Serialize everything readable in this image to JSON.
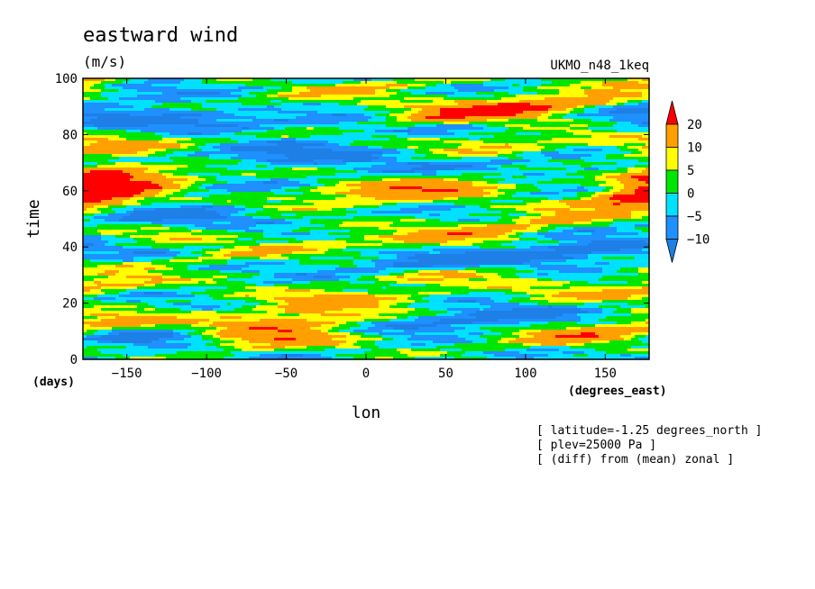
{
  "chart_data": {
    "type": "heatmap",
    "title": "eastward wind",
    "units": "(m/s)",
    "model": "UKMO_n48_1keq",
    "xlabel": "lon",
    "ylabel": "time",
    "x_units": "(degrees_east)",
    "y_units": "(days)",
    "xlim": [
      -177.5,
      177.5
    ],
    "ylim": [
      0,
      100
    ],
    "x_ticks": [
      -150,
      -100,
      -50,
      0,
      50,
      100,
      150
    ],
    "y_ticks": [
      0,
      20,
      40,
      60,
      80,
      100
    ],
    "notes": [
      "[ latitude=-1.25 degrees_north ]",
      "[ plev=25000 Pa ]",
      "[ (diff) from (mean) zonal ]"
    ],
    "colorbar": {
      "labels": [
        "20",
        "10",
        "5",
        "0",
        "-5",
        "-10"
      ],
      "levels": [
        {
          "lo": -99,
          "hi": -10,
          "color": "#1e7fe6"
        },
        {
          "lo": -10,
          "hi": -5,
          "color": "#1e90ff"
        },
        {
          "lo": -5,
          "hi": 0,
          "color": "#00e1ff"
        },
        {
          "lo": 0,
          "hi": 5,
          "color": "#00e600"
        },
        {
          "lo": 5,
          "hi": 10,
          "color": "#ffff00"
        },
        {
          "lo": 10,
          "hi": 20,
          "color": "#ffa000"
        },
        {
          "lo": 20,
          "hi": 99,
          "color": "#ff0000"
        }
      ]
    },
    "features": [
      {
        "x0": -180,
        "t0": 98,
        "speed": 0.14,
        "half_time": 3.0,
        "width_deg": 55,
        "amp": 16
      },
      {
        "x0": 0,
        "t0": 96,
        "speed": 0.07,
        "half_time": 2.5,
        "width_deg": 80,
        "amp": 12
      },
      {
        "x0": 80,
        "t0": 89,
        "speed": 0.09,
        "half_time": 3.0,
        "width_deg": 50,
        "amp": 20
      },
      {
        "x0": 20,
        "t0": 86,
        "speed": 0.06,
        "half_time": 2.5,
        "width_deg": 90,
        "amp": 10
      },
      {
        "x0": 90,
        "t0": 77,
        "speed": 0.04,
        "half_time": 2.5,
        "width_deg": 40,
        "amp": 14
      },
      {
        "x0": -160,
        "t0": 76,
        "speed": 0.04,
        "half_time": 2.5,
        "width_deg": 40,
        "amp": 13
      },
      {
        "x0": -165,
        "t0": 63,
        "speed": 0.0,
        "half_time": 6.0,
        "width_deg": 25,
        "amp": 22
      },
      {
        "x0": -120,
        "t0": 67,
        "speed": 0.05,
        "half_time": 3.5,
        "width_deg": 40,
        "amp": 13
      },
      {
        "x0": 50,
        "t0": 62,
        "speed": 0.07,
        "half_time": 3.5,
        "width_deg": 60,
        "amp": 18
      },
      {
        "x0": -40,
        "t0": 57,
        "speed": 0.05,
        "half_time": 2.5,
        "width_deg": 60,
        "amp": 8
      },
      {
        "x0": 170,
        "t0": 57,
        "speed": 0.0,
        "half_time": 2.5,
        "width_deg": 25,
        "amp": 18
      },
      {
        "x0": 80,
        "t0": 46,
        "speed": 0.1,
        "half_time": 3.0,
        "width_deg": 90,
        "amp": 16
      },
      {
        "x0": -60,
        "t0": 39,
        "speed": 0.08,
        "half_time": 2.5,
        "width_deg": 70,
        "amp": 11
      },
      {
        "x0": -120,
        "t0": 45,
        "speed": 0.04,
        "half_time": 2.5,
        "width_deg": 40,
        "amp": 9
      },
      {
        "x0": 60,
        "t0": 30,
        "speed": 0.03,
        "half_time": 2.5,
        "width_deg": 50,
        "amp": 11
      },
      {
        "x0": -160,
        "t0": 27,
        "speed": 0.04,
        "half_time": 2.5,
        "width_deg": 30,
        "amp": 9
      },
      {
        "x0": -20,
        "t0": 22,
        "speed": 0.03,
        "half_time": 2.5,
        "width_deg": 50,
        "amp": 12
      },
      {
        "x0": 150,
        "t0": 24,
        "speed": 0.03,
        "half_time": 2.5,
        "width_deg": 40,
        "amp": 12
      },
      {
        "x0": -45,
        "t0": 14,
        "speed": 0.05,
        "half_time": 3.0,
        "width_deg": 45,
        "amp": 19
      },
      {
        "x0": -55,
        "t0": 7,
        "speed": 0.04,
        "half_time": 2.5,
        "width_deg": 40,
        "amp": 18
      },
      {
        "x0": 140,
        "t0": 9,
        "speed": 0.04,
        "half_time": 3.0,
        "width_deg": 50,
        "amp": 18
      },
      {
        "x0": -160,
        "t0": 14,
        "speed": 0.02,
        "half_time": 2.5,
        "width_deg": 40,
        "amp": 9
      },
      {
        "x0": -120,
        "t0": 86,
        "speed": -0.02,
        "half_time": 3.0,
        "width_deg": 45,
        "amp": -14
      },
      {
        "x0": 100,
        "t0": 68,
        "speed": 0.03,
        "half_time": 3.0,
        "width_deg": 50,
        "amp": -13
      },
      {
        "x0": -70,
        "t0": 72,
        "speed": 0.03,
        "half_time": 3.0,
        "width_deg": 55,
        "amp": -13
      },
      {
        "x0": -110,
        "t0": 52,
        "speed": 0.02,
        "half_time": 3.5,
        "width_deg": 45,
        "amp": -13
      },
      {
        "x0": 20,
        "t0": 35,
        "speed": 0.02,
        "half_time": 3.0,
        "width_deg": 50,
        "amp": -13
      },
      {
        "x0": 130,
        "t0": 38,
        "speed": 0.03,
        "half_time": 3.0,
        "width_deg": 40,
        "amp": -12
      },
      {
        "x0": -140,
        "t0": 8,
        "speed": 0.02,
        "half_time": 2.5,
        "width_deg": 40,
        "amp": -12
      },
      {
        "x0": 70,
        "t0": 14,
        "speed": 0.02,
        "half_time": 3.0,
        "width_deg": 50,
        "amp": -12
      },
      {
        "x0": 0,
        "t0": 83,
        "speed": 0.0,
        "half_time": 2.5,
        "width_deg": 50,
        "amp": -12
      },
      {
        "x0": 150,
        "t0": 95,
        "speed": 0.0,
        "half_time": 2.5,
        "width_deg": 40,
        "amp": -10
      }
    ]
  }
}
